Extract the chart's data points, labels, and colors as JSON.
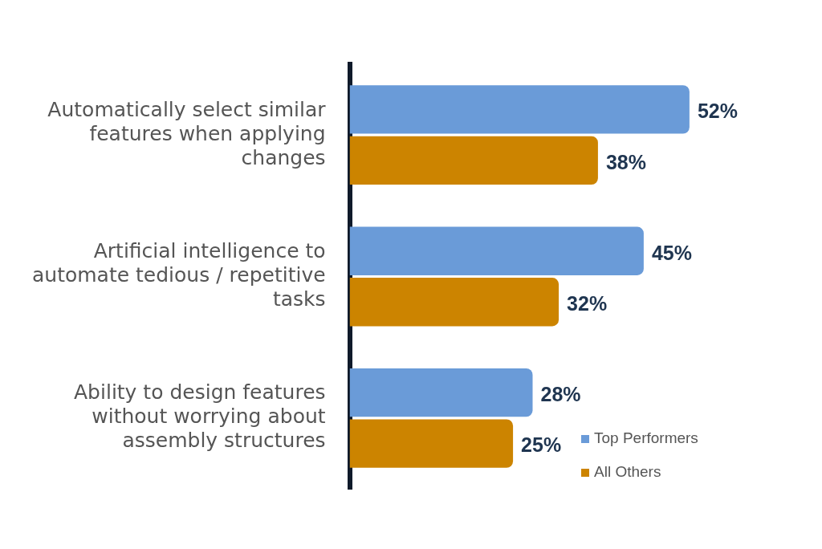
{
  "chart_data": {
    "type": "bar",
    "orientation": "horizontal",
    "categories": [
      "Automatically select similar features when applying changes",
      "Artificial intelligence to automate tedious / repetitive tasks",
      "Ability to design features without worrying about assembly structures"
    ],
    "series": [
      {
        "name": "Top Performers",
        "color": "#6a9bd8",
        "values": [
          52,
          45,
          28
        ],
        "value_labels": [
          "52%",
          "45%",
          "28%"
        ]
      },
      {
        "name": "All Others",
        "color": "#cc8400",
        "values": [
          38,
          32,
          25
        ],
        "value_labels": [
          "38%",
          "32%",
          "25%"
        ]
      }
    ],
    "legend": "bottom right",
    "grid": false,
    "tick_labels": "y"
  }
}
